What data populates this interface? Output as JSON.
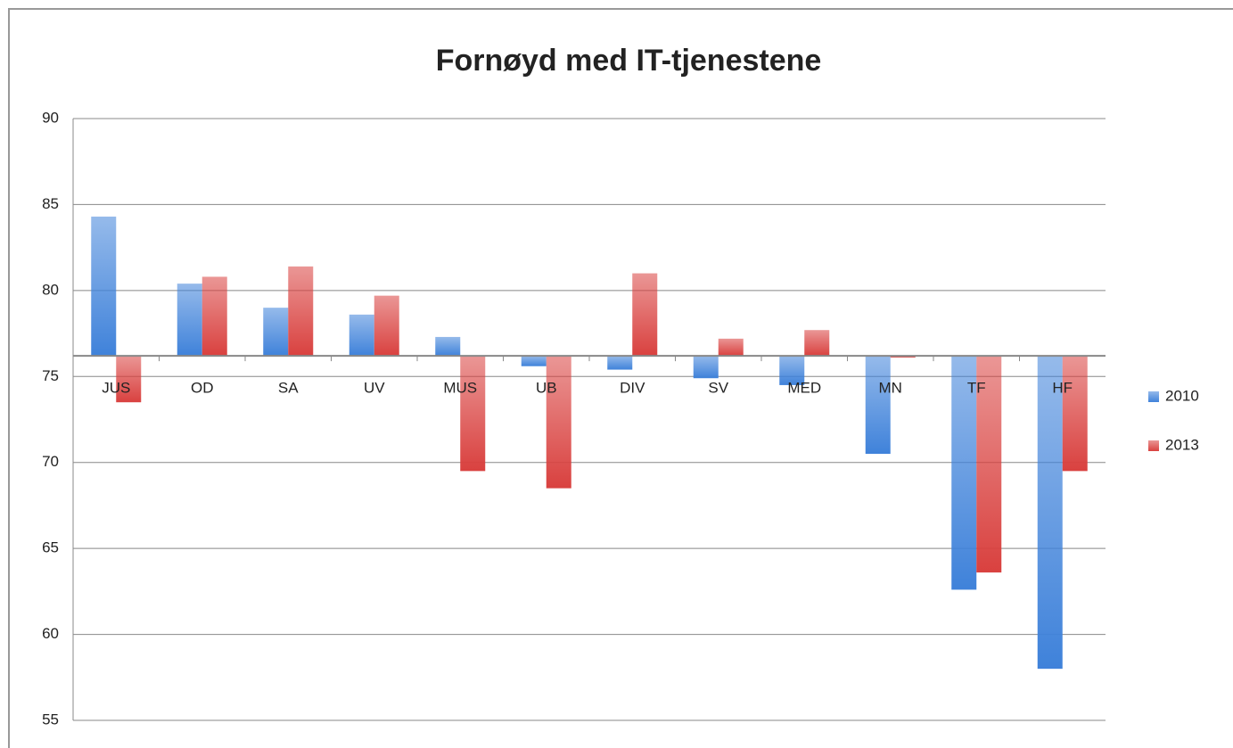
{
  "chart_data": {
    "type": "bar",
    "title": "Fornøyd med IT-tjenestene",
    "categories": [
      "JUS",
      "OD",
      "SA",
      "UV",
      "MUS",
      "UB",
      "DIV",
      "SV",
      "MED",
      "MN",
      "TF",
      "HF"
    ],
    "series": [
      {
        "name": "2010",
        "color": "#3f82da",
        "values": [
          84.3,
          80.4,
          79.0,
          78.6,
          77.3,
          75.6,
          75.4,
          74.9,
          74.5,
          70.5,
          62.6,
          58.0
        ]
      },
      {
        "name": "2013",
        "color": "#d9413f",
        "values": [
          73.5,
          80.8,
          81.4,
          79.7,
          69.5,
          68.5,
          81.0,
          77.2,
          77.7,
          76.1,
          63.6,
          69.5
        ]
      }
    ],
    "ylim": [
      55,
      90
    ],
    "yticks": [
      55,
      60,
      65,
      70,
      75,
      80,
      85,
      90
    ],
    "grid": true,
    "x_axis_crossing": 76.2,
    "legend": "right"
  }
}
